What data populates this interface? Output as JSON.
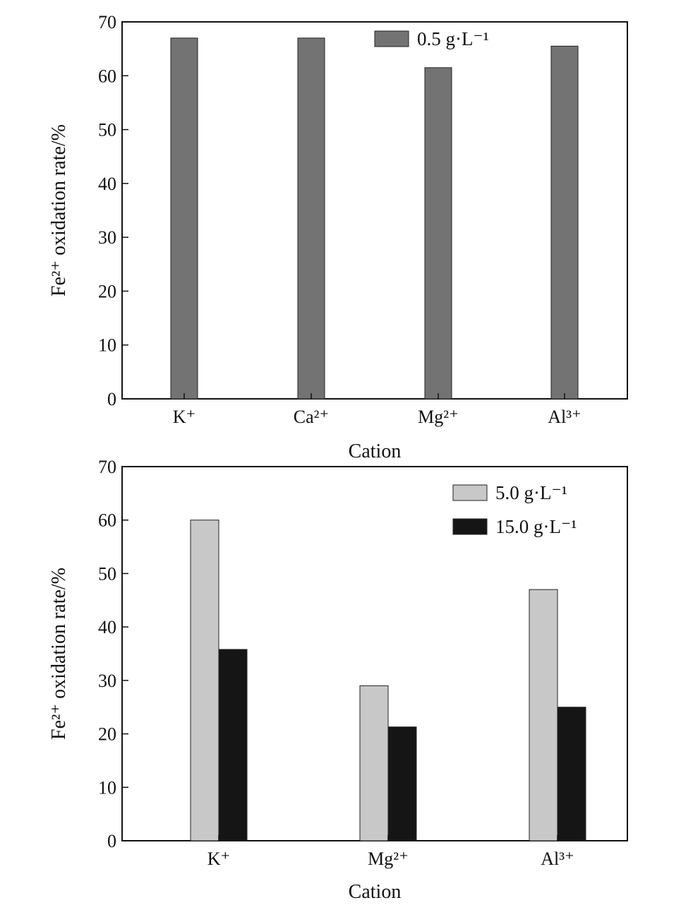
{
  "chart_data": [
    {
      "type": "bar",
      "categories": [
        "K⁺",
        "Ca²⁺",
        "Mg²⁺",
        "Al³⁺"
      ],
      "series": [
        {
          "name": "0.5 g·L⁻¹",
          "values": [
            67,
            67,
            61.5,
            65.5
          ],
          "color": "#737373"
        }
      ],
      "xlabel": "Cation",
      "ylabel": "Fe²⁺ oxidation rate/%",
      "ylim": [
        0,
        70
      ],
      "yticks": [
        0,
        10,
        20,
        30,
        40,
        50,
        60,
        70
      ],
      "legend_position": "top-center",
      "grid": false
    },
    {
      "type": "bar",
      "categories": [
        "K⁺",
        "Mg²⁺",
        "Al³⁺"
      ],
      "series": [
        {
          "name": "5.0 g·L⁻¹",
          "values": [
            60,
            29,
            47
          ],
          "color": "#c8c8c8"
        },
        {
          "name": "15.0 g·L⁻¹",
          "values": [
            35.8,
            21.3,
            25
          ],
          "color": "#151515"
        }
      ],
      "xlabel": "Cation",
      "ylabel": "Fe²⁺ oxidation rate/%",
      "ylim": [
        0,
        70
      ],
      "yticks": [
        0,
        10,
        20,
        30,
        40,
        50,
        60,
        70
      ],
      "legend_position": "top-right",
      "grid": false
    }
  ]
}
